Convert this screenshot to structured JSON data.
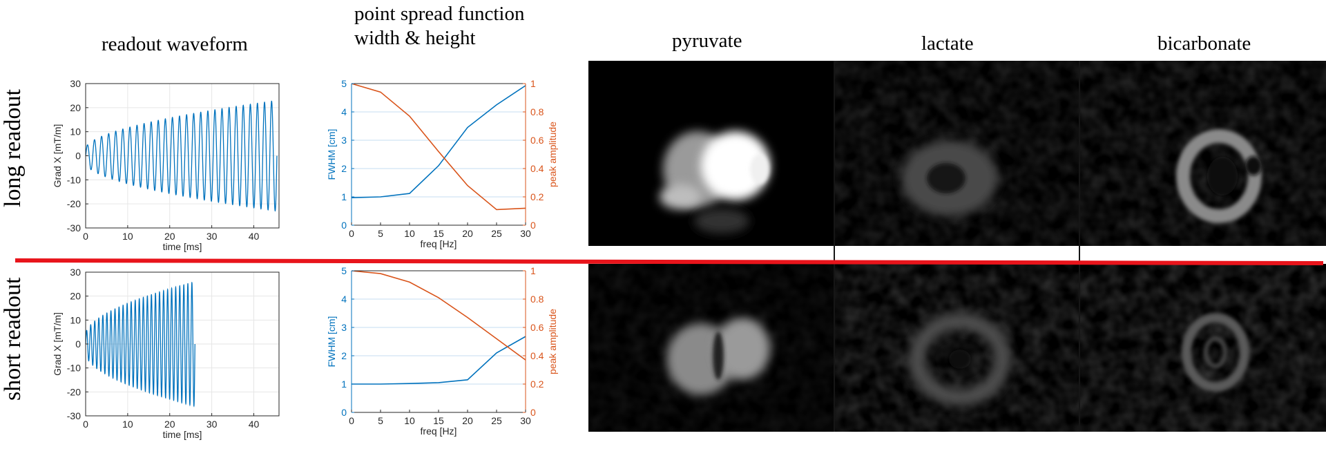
{
  "column_titles": {
    "readout": "readout waveform",
    "psf_line1": "point spread function",
    "psf_line2": "width & height",
    "pyruvate": "pyruvate",
    "lactate": "lactate",
    "bicarbonate": "bicarbonate"
  },
  "row_labels": {
    "long": "long readout",
    "short": "short readout"
  },
  "colors": {
    "blue": "#0072BD",
    "orange": "#D95319",
    "divider": "#e8141b",
    "image_bg": "#000000"
  },
  "chart_data": [
    {
      "type": "line",
      "id": "waveform-long",
      "xlabel": "time [ms]",
      "ylabel": "Grad X [mT/m]",
      "xlim": [
        0,
        46
      ],
      "ylim": [
        -30,
        30
      ],
      "xticks": [
        "0",
        "10",
        "20",
        "30",
        "40"
      ],
      "yticks": [
        "-30",
        "-20",
        "-10",
        "0",
        "10",
        "20",
        "30"
      ],
      "grid": true,
      "waveform": {
        "duration": 45.5,
        "cycles": 27,
        "amp_start": 3,
        "amp_end": 23,
        "shape": "oscillating spiral readout, growing amplitude"
      }
    },
    {
      "type": "line",
      "id": "psf-long",
      "xlabel": "freq [Hz]",
      "ylabel": "FWHM [cm]",
      "ylabel_right": "peak amplitude",
      "x": [
        0,
        5,
        10,
        15,
        20,
        25,
        30
      ],
      "xlim": [
        0,
        30
      ],
      "ylim": [
        0,
        5
      ],
      "ylim_right": [
        0,
        1
      ],
      "xticks": [
        "0",
        "5",
        "10",
        "15",
        "20",
        "25",
        "30"
      ],
      "yticks": [
        "0",
        "1",
        "2",
        "3",
        "4",
        "5"
      ],
      "yticks_right": [
        "0",
        "0.2",
        "0.4",
        "0.6",
        "0.8",
        "1"
      ],
      "grid": true,
      "series": [
        {
          "axis": "left",
          "values": [
            0.97,
            1.0,
            1.12,
            2.1,
            3.45,
            4.25,
            4.93
          ]
        },
        {
          "axis": "right",
          "values": [
            1.0,
            0.94,
            0.77,
            0.52,
            0.28,
            0.11,
            0.12
          ]
        }
      ]
    },
    {
      "type": "line",
      "id": "waveform-short",
      "xlabel": "time [ms]",
      "ylabel": "Grad X [mT/m]",
      "xlim": [
        0,
        46
      ],
      "ylim": [
        -30,
        30
      ],
      "xticks": [
        "0",
        "10",
        "20",
        "30",
        "40"
      ],
      "yticks": [
        "-30",
        "-20",
        "-10",
        "0",
        "10",
        "20",
        "30"
      ],
      "grid": true,
      "waveform": {
        "duration": 26,
        "cycles": 27,
        "amp_start": 4,
        "amp_end": 26,
        "shape": "oscillating spiral readout, growing amplitude"
      }
    },
    {
      "type": "line",
      "id": "psf-short",
      "xlabel": "freq [Hz]",
      "ylabel": "FWHM [cm]",
      "ylabel_right": "peak amplitude",
      "x": [
        0,
        5,
        10,
        15,
        20,
        25,
        30
      ],
      "xlim": [
        0,
        30
      ],
      "ylim": [
        0,
        5
      ],
      "ylim_right": [
        0,
        1
      ],
      "xticks": [
        "0",
        "5",
        "10",
        "15",
        "20",
        "25",
        "30"
      ],
      "yticks": [
        "0",
        "1",
        "2",
        "3",
        "4",
        "5"
      ],
      "yticks_right": [
        "0",
        "0.2",
        "0.4",
        "0.6",
        "0.8",
        "1"
      ],
      "grid": true,
      "series": [
        {
          "axis": "left",
          "values": [
            1.0,
            1.0,
            1.02,
            1.05,
            1.15,
            2.1,
            2.68
          ]
        },
        {
          "axis": "right",
          "values": [
            1.0,
            0.98,
            0.92,
            0.81,
            0.67,
            0.52,
            0.37
          ]
        }
      ]
    }
  ]
}
